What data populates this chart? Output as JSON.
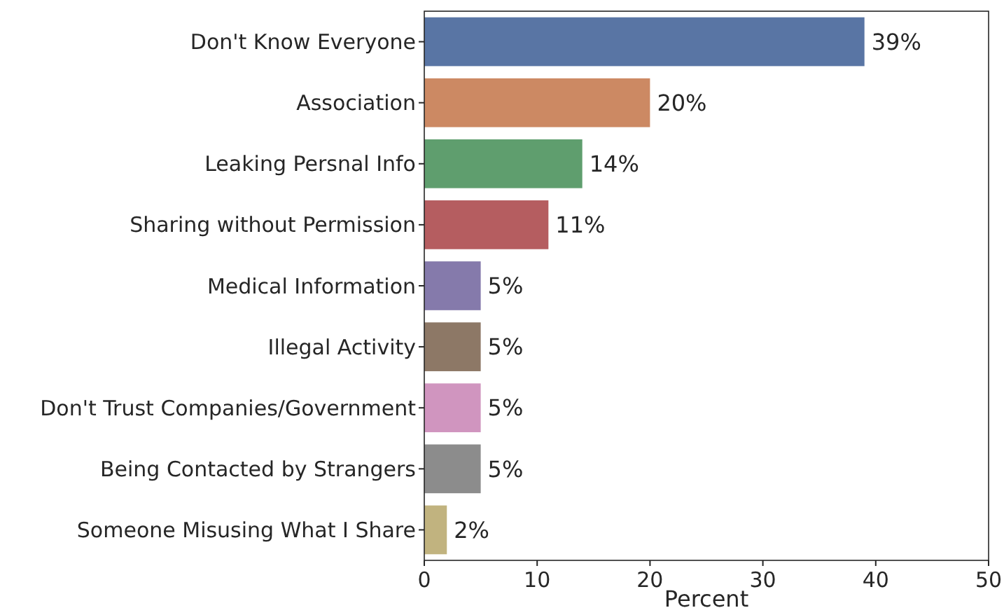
{
  "chart_data": {
    "type": "bar",
    "orientation": "horizontal",
    "xlabel": "Percent",
    "categories": [
      "Don't Know Everyone",
      "Association",
      "Leaking Persnal Info",
      "Sharing without Permission",
      "Medical Information",
      "Illegal Activity",
      "Don't Trust Companies/Government",
      "Being Contacted by Strangers",
      "Someone Misusing What I Share"
    ],
    "values": [
      39,
      20,
      14,
      11,
      5,
      5,
      5,
      5,
      2
    ],
    "value_labels": [
      "39%",
      "20%",
      "14%",
      "11%",
      "5%",
      "5%",
      "5%",
      "5%",
      "2%"
    ],
    "colors": [
      "#5975a4",
      "#cc8963",
      "#5f9e6e",
      "#b55d60",
      "#857aab",
      "#8d7866",
      "#d095bf",
      "#8c8c8c",
      "#c1b37f"
    ],
    "xlim": [
      0,
      50
    ],
    "xticks": [
      0,
      10,
      20,
      30,
      40,
      50
    ]
  }
}
